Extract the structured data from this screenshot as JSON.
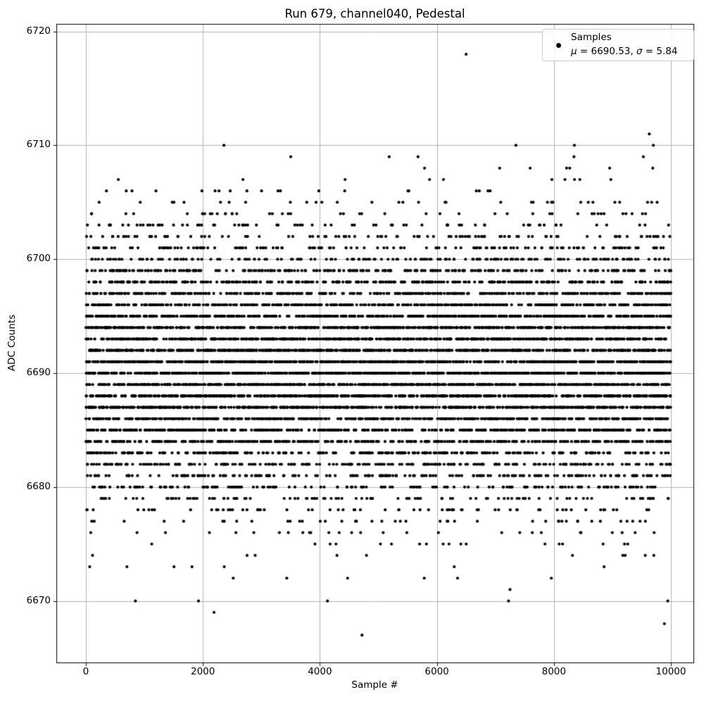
{
  "chart_data": {
    "type": "scatter",
    "title": "Run 679, channel040, Pedestal",
    "xlabel": "Sample #",
    "ylabel": "ADC Counts",
    "xlim": [
      -505,
      10385
    ],
    "ylim": [
      6664.6,
      6720.66
    ],
    "xticks": [
      0,
      2000,
      4000,
      6000,
      8000,
      10000
    ],
    "xtick_labels": [
      "0",
      "2000",
      "4000",
      "6000",
      "8000",
      "10000"
    ],
    "yticks": [
      6670,
      6680,
      6690,
      6700,
      6710,
      6720
    ],
    "ytick_labels": [
      "6670",
      "6680",
      "6690",
      "6700",
      "6710",
      "6720"
    ],
    "grid": true,
    "grid_color": "#b0b0b0",
    "axis_color": "#000000",
    "marker": {
      "shape": "point",
      "color": "#000000",
      "radius_px": 2.1
    },
    "series": [
      {
        "name": "Samples",
        "n_samples": 10000,
        "x_range": [
          0,
          9999
        ],
        "distribution": {
          "type": "gaussian",
          "mu": 6690.53,
          "sigma": 5.84,
          "values_are_integers": true,
          "bulk_value_range": [
            6668,
            6709
          ],
          "seed": 20679
        },
        "observed_min": 6667,
        "observed_max": 6718,
        "notable_points": [
          [
            6500,
            6718
          ],
          [
            9630,
            6711
          ],
          [
            2360,
            6710
          ],
          [
            7350,
            6710
          ],
          [
            8350,
            6710
          ],
          [
            9700,
            6710
          ],
          [
            9690,
            6708
          ],
          [
            7250,
            6671
          ],
          [
            1925,
            6670
          ],
          [
            2190,
            6669
          ],
          [
            4720,
            6667
          ]
        ]
      }
    ],
    "legend": {
      "location": "upper right",
      "line1": "Samples",
      "mu_symbol": "μ",
      "mu_rest": " = 6690.53, ",
      "sigma_symbol": "σ",
      "sigma_rest": " = 5.84"
    }
  }
}
